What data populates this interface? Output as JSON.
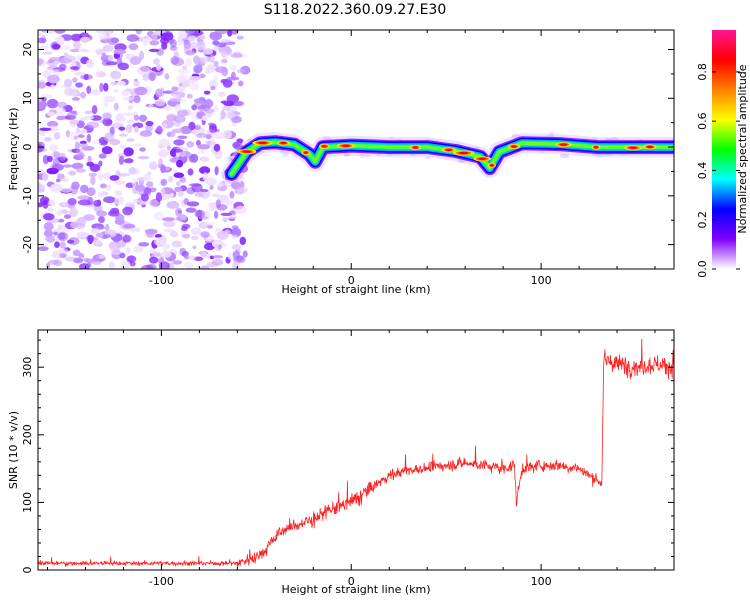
{
  "title": "S118.2022.360.09.27.E30",
  "colorbar": {
    "label": "Normalized spectral amplitude",
    "ticks": [
      "0.0",
      "0.2",
      "0.4",
      "0.6",
      "0.8"
    ],
    "tick_values": [
      0.0,
      0.2,
      0.4,
      0.6,
      0.8
    ],
    "colors": [
      "#ffffff",
      "#8000ff",
      "#0000ff",
      "#00ffff",
      "#00ff00",
      "#ffff00",
      "#ff8000",
      "#ff0000",
      "#ff1493"
    ]
  },
  "chart_data": [
    {
      "type": "heatmap",
      "title": "S118.2022.360.09.27.E30",
      "xlabel": "Height of straight line (km)",
      "ylabel": "Frequency (Hz)",
      "xlim": [
        -165,
        170
      ],
      "ylim": [
        -25,
        24
      ],
      "xticks": [
        -100,
        0,
        100
      ],
      "yticks": [
        -20,
        -10,
        0,
        10,
        20
      ],
      "xtick_labels": [
        "-100",
        "0",
        "100"
      ],
      "ytick_labels": [
        "-20",
        "-10",
        "0",
        "10",
        "20"
      ],
      "noise_region_x": [
        -165,
        -60
      ],
      "signal_ridge": [
        {
          "x": -63,
          "y": -5.5
        },
        {
          "x": -55,
          "y": -1
        },
        {
          "x": -48,
          "y": 0.8
        },
        {
          "x": -40,
          "y": 1.0
        },
        {
          "x": -30,
          "y": 0.5
        },
        {
          "x": -22,
          "y": -1.5
        },
        {
          "x": -19,
          "y": -3
        },
        {
          "x": -15,
          "y": 0
        },
        {
          "x": 0,
          "y": 0.3
        },
        {
          "x": 20,
          "y": 0
        },
        {
          "x": 40,
          "y": 0
        },
        {
          "x": 55,
          "y": -0.8
        },
        {
          "x": 68,
          "y": -2
        },
        {
          "x": 73,
          "y": -4.3
        },
        {
          "x": 78,
          "y": -1
        },
        {
          "x": 90,
          "y": 0.8
        },
        {
          "x": 110,
          "y": 0.6
        },
        {
          "x": 130,
          "y": 0
        },
        {
          "x": 150,
          "y": 0
        },
        {
          "x": 170,
          "y": 0
        }
      ]
    },
    {
      "type": "line",
      "xlabel": "Height of straight line (km)",
      "ylabel": "SNR (10 * v/v)",
      "xlim": [
        -165,
        170
      ],
      "ylim": [
        0,
        355
      ],
      "xticks": [
        -100,
        0,
        100
      ],
      "yticks": [
        0,
        100,
        200,
        300
      ],
      "xtick_labels": [
        "-100",
        "0",
        "100"
      ],
      "ytick_labels": [
        "0",
        "100",
        "200",
        "300"
      ],
      "color": "#ff2020",
      "series": [
        {
          "x": [
            -165,
            -150,
            -120,
            -90,
            -60,
            -50,
            -45,
            -40,
            -35,
            -30,
            -20,
            -10,
            0,
            10,
            20,
            30,
            40,
            50,
            60,
            70,
            80,
            86,
            87,
            90,
            100,
            110,
            120,
            128,
            132,
            133,
            140,
            150,
            160,
            170
          ],
          "y": [
            10,
            10,
            10,
            10,
            10,
            20,
            30,
            50,
            60,
            65,
            75,
            90,
            100,
            120,
            140,
            148,
            150,
            155,
            158,
            155,
            150,
            155,
            100,
            150,
            155,
            155,
            150,
            135,
            130,
            310,
            305,
            300,
            305,
            300
          ]
        }
      ]
    }
  ]
}
